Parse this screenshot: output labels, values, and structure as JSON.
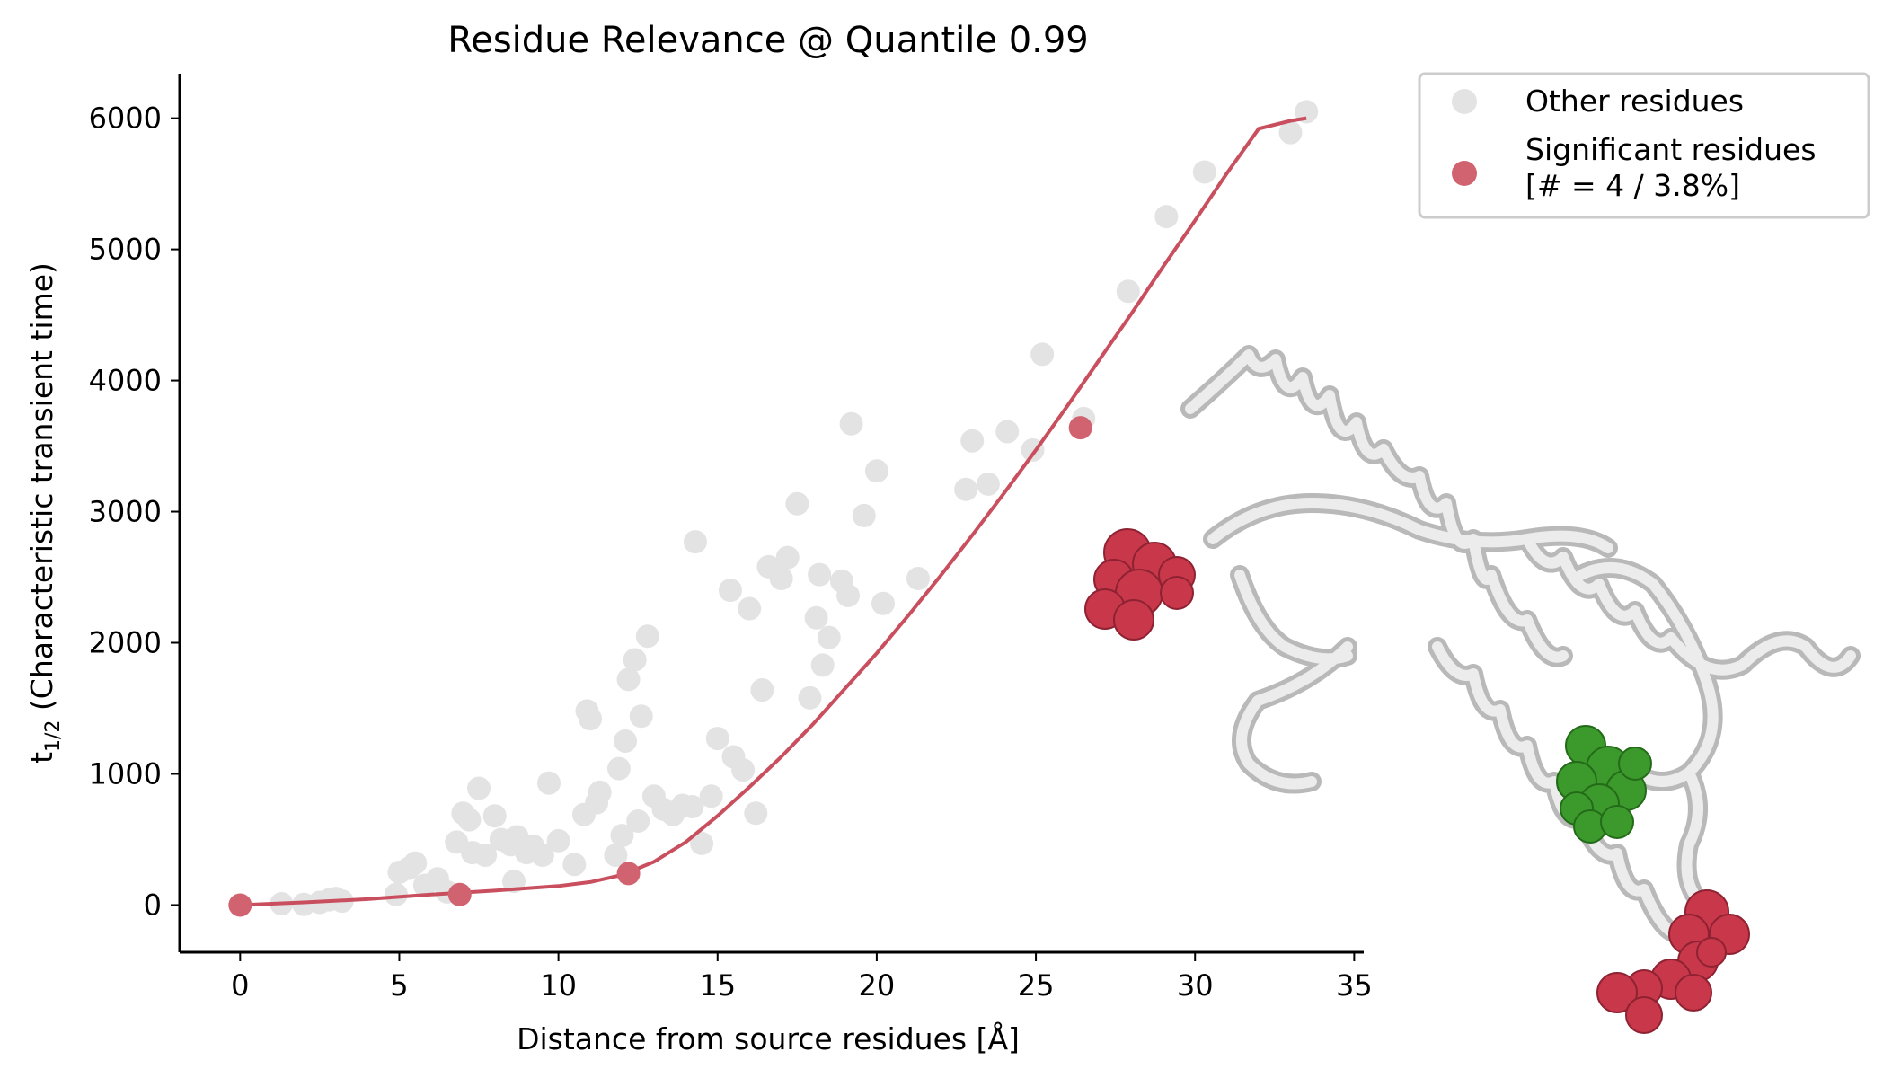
{
  "chart_data": {
    "type": "scatter",
    "title": "Residue Relevance @ Quantile 0.99",
    "xlabel": "Distance from source residues [Å]",
    "ylabel_main": "t",
    "ylabel_sub": "1/2",
    "ylabel_rest": " (Characteristic transient time)",
    "xlim": [
      -1.9,
      35.3
    ],
    "ylim": [
      -360,
      6340
    ],
    "xticks": [
      0,
      5,
      10,
      15,
      20,
      25,
      30,
      35
    ],
    "yticks": [
      0,
      1000,
      2000,
      3000,
      4000,
      5000,
      6000
    ],
    "legend": {
      "position": "top-right",
      "entries": [
        {
          "label": "Other residues"
        },
        {
          "label": "Significant residues",
          "label2": "[# = 4 / 3.8%]"
        }
      ]
    },
    "colors": {
      "other": "#e3e3e3",
      "significant": "#d0636f",
      "fit": "#c94f5e",
      "axis": "#000000"
    },
    "series": [
      {
        "name": "Other residues",
        "points": [
          [
            1.3,
            10
          ],
          [
            2.0,
            5
          ],
          [
            2.5,
            20
          ],
          [
            2.8,
            40
          ],
          [
            3.0,
            50
          ],
          [
            3.2,
            30
          ],
          [
            4.9,
            80
          ],
          [
            5.0,
            250
          ],
          [
            5.3,
            280
          ],
          [
            5.5,
            320
          ],
          [
            5.8,
            150
          ],
          [
            6.2,
            200
          ],
          [
            6.5,
            100
          ],
          [
            6.8,
            480
          ],
          [
            7.0,
            700
          ],
          [
            7.2,
            650
          ],
          [
            7.3,
            400
          ],
          [
            7.5,
            890
          ],
          [
            7.7,
            380
          ],
          [
            8.0,
            680
          ],
          [
            8.2,
            500
          ],
          [
            8.5,
            460
          ],
          [
            8.6,
            180
          ],
          [
            8.7,
            520
          ],
          [
            9.0,
            400
          ],
          [
            9.2,
            450
          ],
          [
            9.5,
            380
          ],
          [
            9.7,
            930
          ],
          [
            10.0,
            490
          ],
          [
            10.5,
            310
          ],
          [
            10.8,
            690
          ],
          [
            10.9,
            1480
          ],
          [
            11.0,
            1420
          ],
          [
            11.2,
            780
          ],
          [
            11.3,
            860
          ],
          [
            11.8,
            380
          ],
          [
            11.9,
            1040
          ],
          [
            12.0,
            530
          ],
          [
            12.1,
            1250
          ],
          [
            12.2,
            1720
          ],
          [
            12.4,
            1870
          ],
          [
            12.5,
            640
          ],
          [
            12.6,
            1440
          ],
          [
            12.8,
            2050
          ],
          [
            13.0,
            830
          ],
          [
            13.3,
            730
          ],
          [
            13.6,
            690
          ],
          [
            13.9,
            760
          ],
          [
            14.2,
            750
          ],
          [
            14.3,
            2770
          ],
          [
            14.5,
            470
          ],
          [
            14.8,
            830
          ],
          [
            15.0,
            1270
          ],
          [
            15.4,
            2400
          ],
          [
            15.5,
            1130
          ],
          [
            15.8,
            1030
          ],
          [
            16.0,
            2260
          ],
          [
            16.2,
            700
          ],
          [
            16.4,
            1640
          ],
          [
            16.6,
            2580
          ],
          [
            17.0,
            2490
          ],
          [
            17.2,
            2650
          ],
          [
            17.5,
            3060
          ],
          [
            17.9,
            1580
          ],
          [
            18.1,
            2190
          ],
          [
            18.2,
            2520
          ],
          [
            18.3,
            1830
          ],
          [
            18.5,
            2040
          ],
          [
            18.9,
            2470
          ],
          [
            19.1,
            2360
          ],
          [
            19.2,
            3670
          ],
          [
            19.6,
            2970
          ],
          [
            20.0,
            3310
          ],
          [
            20.2,
            2300
          ],
          [
            21.3,
            2490
          ],
          [
            22.8,
            3170
          ],
          [
            23.0,
            3540
          ],
          [
            23.5,
            3210
          ],
          [
            24.1,
            3610
          ],
          [
            24.9,
            3470
          ],
          [
            25.2,
            4200
          ],
          [
            26.5,
            3710
          ],
          [
            27.9,
            4680
          ],
          [
            29.1,
            5250
          ],
          [
            30.3,
            5590
          ],
          [
            33.0,
            5890
          ],
          [
            33.5,
            6050
          ]
        ]
      },
      {
        "name": "Significant residues",
        "points": [
          [
            0.0,
            0
          ],
          [
            6.9,
            80
          ],
          [
            12.2,
            240
          ],
          [
            26.4,
            3640
          ]
        ]
      }
    ],
    "fit_curve": {
      "x": [
        0,
        2,
        4,
        6,
        8,
        10,
        11,
        12,
        13,
        14,
        15,
        16,
        17,
        18,
        19,
        20,
        21,
        22,
        23,
        24,
        25,
        26,
        27,
        28,
        29,
        30,
        31,
        32,
        33,
        33.5
      ],
      "y": [
        0,
        20,
        45,
        80,
        110,
        145,
        175,
        230,
        330,
        480,
        680,
        900,
        1130,
        1380,
        1650,
        1920,
        2210,
        2510,
        2820,
        3140,
        3470,
        3810,
        4160,
        4510,
        4870,
        5220,
        5580,
        5920,
        5980,
        6000
      ]
    },
    "inset": {
      "description_visible": false
    }
  }
}
